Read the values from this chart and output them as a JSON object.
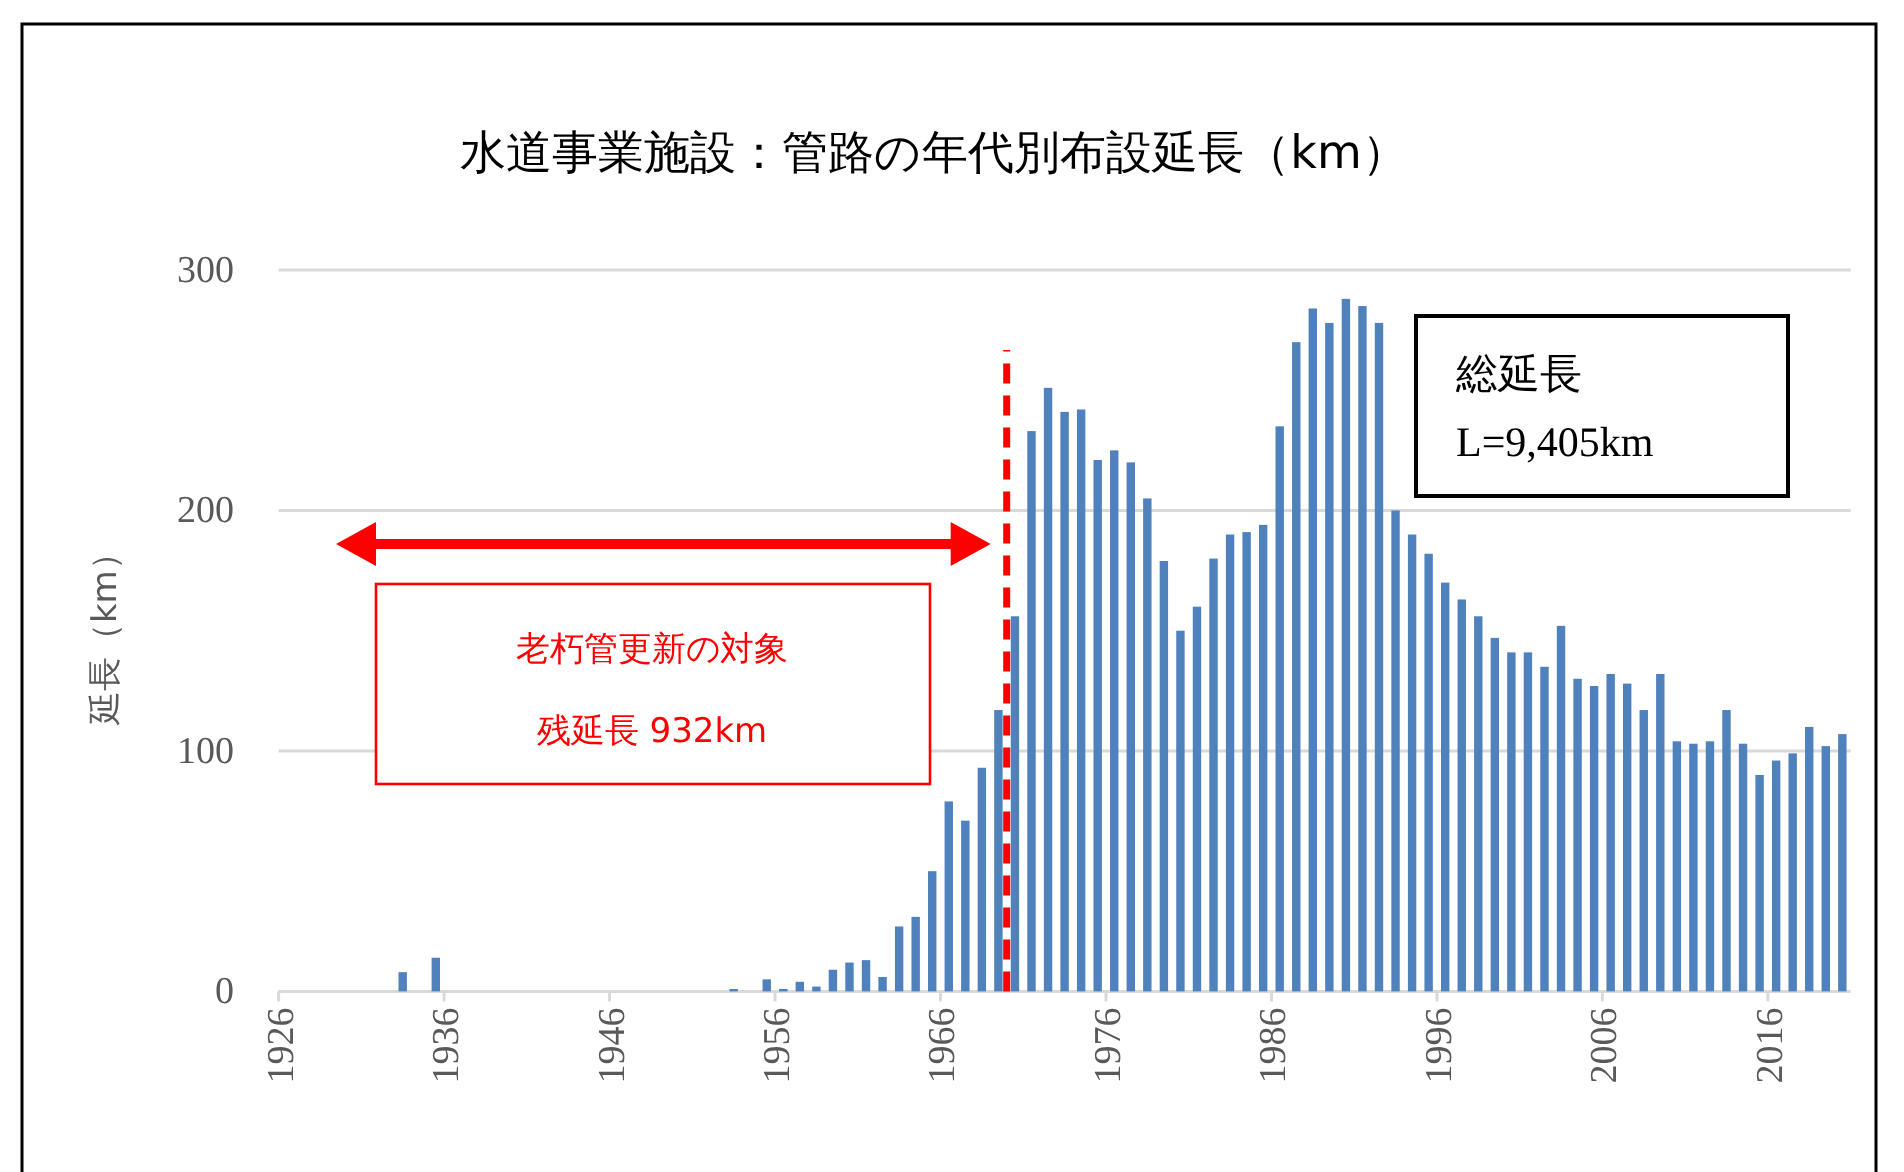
{
  "chart_data": {
    "type": "bar",
    "title": "水道事業施設：管路の年代別布設延長（km）",
    "ylabel": "延長（km）",
    "x": [
      1933,
      1935,
      1953,
      1955,
      1956,
      1957,
      1958,
      1959,
      1960,
      1961,
      1962,
      1963,
      1964,
      1965,
      1966,
      1967,
      1968,
      1969,
      1970,
      1971,
      1972,
      1973,
      1974,
      1975,
      1976,
      1977,
      1978,
      1979,
      1980,
      1981,
      1982,
      1983,
      1984,
      1985,
      1986,
      1987,
      1988,
      1989,
      1990,
      1991,
      1992,
      1993,
      1994,
      1995,
      1996,
      1997,
      1998,
      1999,
      2000,
      2001,
      2002,
      2003,
      2004,
      2005,
      2006,
      2007,
      2008,
      2009,
      2010,
      2011,
      2012,
      2013,
      2014,
      2015,
      2016,
      2017,
      2018,
      2019,
      2020
    ],
    "values": [
      8,
      14,
      1,
      5,
      1,
      4,
      2,
      9,
      12,
      13,
      6,
      27,
      31,
      50,
      79,
      71,
      93,
      117,
      156,
      233,
      251,
      241,
      242,
      221,
      225,
      220,
      205,
      179,
      150,
      160,
      180,
      190,
      191,
      194,
      235,
      270,
      284,
      278,
      288,
      285,
      278,
      200,
      190,
      182,
      170,
      163,
      156,
      147,
      141,
      141,
      135,
      152,
      130,
      127,
      132,
      128,
      117,
      132,
      104,
      103,
      104,
      117,
      103,
      90,
      96,
      99,
      110,
      102,
      107
    ],
    "color": "#4f81bd",
    "xlim": [
      1926,
      2021
    ],
    "xticks": [
      1926,
      1936,
      1946,
      1956,
      1966,
      1976,
      1986,
      1996,
      2006,
      2016
    ],
    "ylim": [
      0,
      300
    ],
    "yticks": [
      0,
      100,
      200,
      300
    ],
    "grid": "y",
    "ref_lines": [
      {
        "axis": "x",
        "value": 1970,
        "color": "#ff0000",
        "line_style": "dashed"
      }
    ],
    "annotations": [
      "老朽管更新の対象",
      "残延長 932km",
      "総延長",
      "L=9,405km"
    ]
  }
}
